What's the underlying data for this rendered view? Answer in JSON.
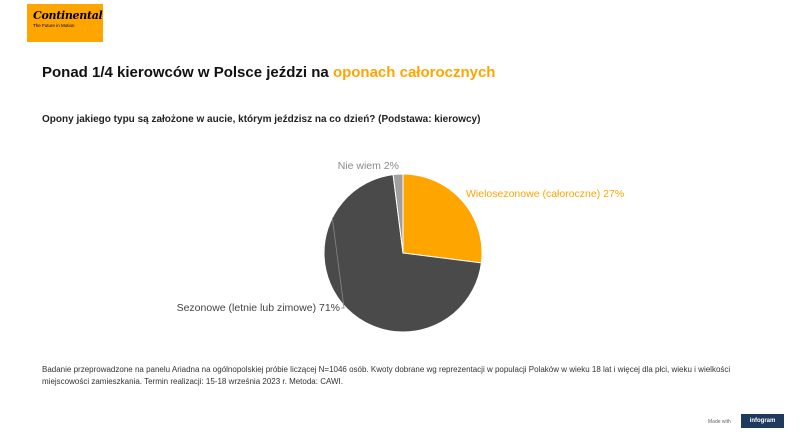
{
  "brand": {
    "logo_text": "Continental",
    "tagline": "The Future in Motion",
    "color": "#ffa500"
  },
  "header": {
    "title_main": "Ponad 1/4 kierowców w Polsce jeździ na ",
    "title_accent": "oponach całorocznych"
  },
  "chart_data": {
    "type": "pie",
    "title": "Ponad 1/4 kierowców w Polsce jeździ na oponach całorocznych",
    "subtitle": "Opony jakiego typu są założone w aucie, którym jeździsz na co dzień? (Podstawa: kierowcy)",
    "slices": [
      {
        "label": "Wielosezonowe (całoroczne) 27%",
        "value": 27,
        "color": "#ffa500",
        "label_color": "#ffa500"
      },
      {
        "label": "Sezonowe (letnie lub zimowe) 71%",
        "value": 71,
        "color": "#4a4a4a",
        "label_color": "#444444"
      },
      {
        "label": "Nie wiem 2%",
        "value": 2,
        "color": "#a0a0a0",
        "label_color": "#8a8a8a"
      }
    ]
  },
  "footer": {
    "note": "Badanie przeprowadzone na panelu Ariadna na ogólnopolskiej próbie liczącej N=1046 osób. Kwoty dobrane wg reprezentacji w populacji Polaków w wieku 18 lat i więcej dla płci, wieku i wielkości miejscowości zamieszkania. Termin realizacji:  15-18 września 2023 r. Metoda: CAWI.",
    "made_with": "Made with",
    "infogram": "infogram"
  }
}
